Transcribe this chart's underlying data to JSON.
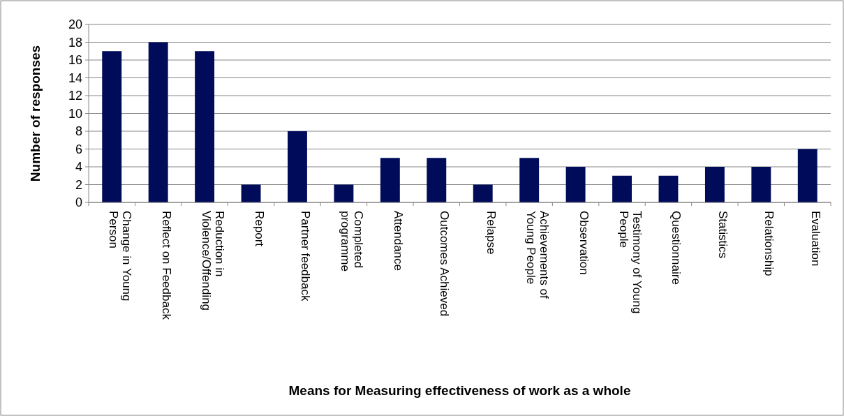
{
  "chart_data": {
    "type": "bar",
    "xlabel": "Means for Measuring effectiveness of work as a whole",
    "ylabel": "Number of responses",
    "categories": [
      "Change in Young Person",
      "Reflect on Feedback",
      "Reduction in Violence/Offending",
      "Report",
      "Partner feedback",
      "Completed programme",
      "Attendance",
      "Outcomes Achieved",
      "Relapse",
      "Achievements of Young People",
      "Observation",
      "Testimony of Young People",
      "Questionnaire",
      "Statistics",
      "Relationship",
      "Evaluation"
    ],
    "values": [
      17,
      18,
      17,
      2,
      8,
      2,
      5,
      5,
      2,
      5,
      4,
      3,
      3,
      4,
      4,
      6
    ],
    "color": "#000c5a",
    "ylim": [
      0,
      20
    ],
    "yticks": [
      0,
      2,
      4,
      6,
      8,
      10,
      12,
      14,
      16,
      18,
      20
    ],
    "grid": "y"
  }
}
